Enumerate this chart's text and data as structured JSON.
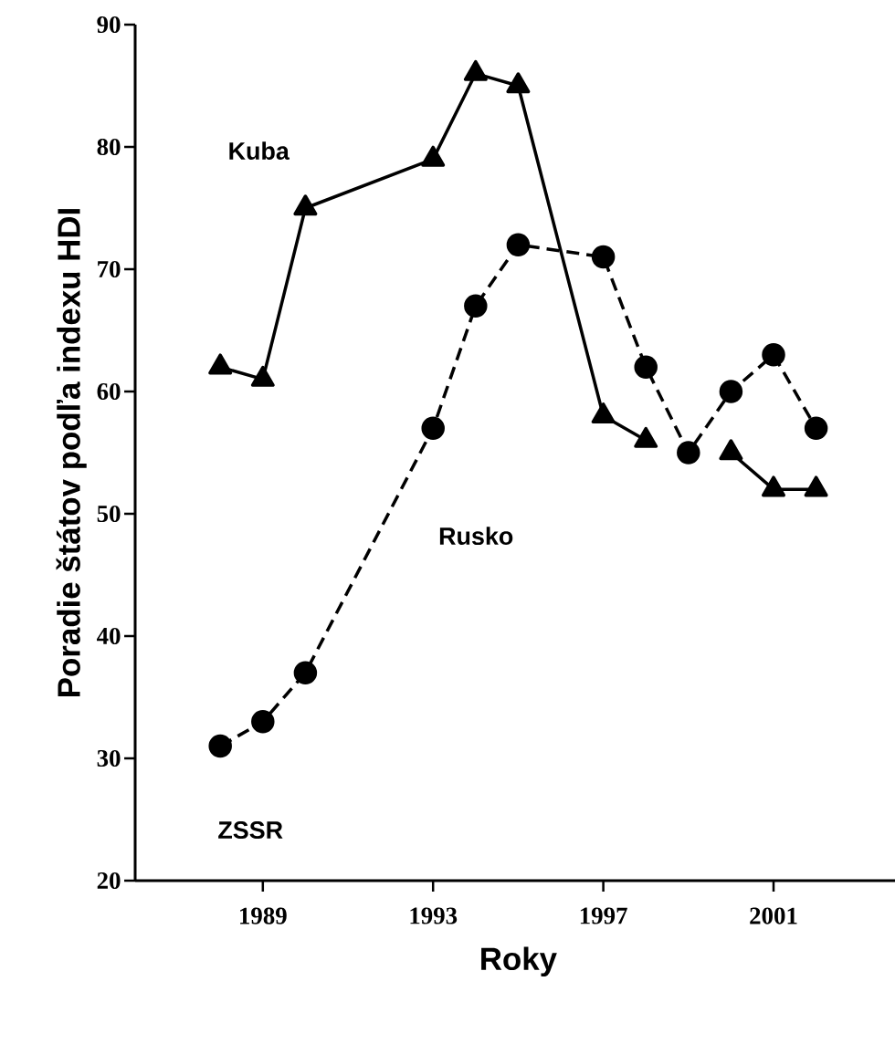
{
  "chart_data": {
    "type": "line",
    "xlabel": "Roky",
    "ylabel": "Poradie štátov podľa indexu HDI",
    "x": [
      1988,
      1989,
      1990,
      1993,
      1994,
      1995,
      1997,
      1998,
      1999,
      2000,
      2001,
      2002
    ],
    "series": [
      {
        "name": "Kuba",
        "color": "#000000",
        "marker": "triangle",
        "line_style": "solid",
        "values": [
          62,
          61,
          75,
          79,
          86,
          85,
          58,
          56,
          null,
          55,
          52,
          52
        ]
      },
      {
        "name": "Rusko",
        "color": "#000000",
        "marker": "circle",
        "line_style": "dashed",
        "values": [
          31,
          33,
          37,
          57,
          67,
          72,
          71,
          62,
          55,
          60,
          63,
          57
        ]
      }
    ],
    "annotations": [
      "ZSSR"
    ],
    "xlim": [
      1986,
      2004
    ],
    "ylim": [
      20,
      90
    ],
    "xticks": [
      1989,
      1993,
      1997,
      2001
    ],
    "yticks": [
      20,
      30,
      40,
      50,
      60,
      70,
      80,
      90
    ],
    "grid": false,
    "legend": false
  }
}
